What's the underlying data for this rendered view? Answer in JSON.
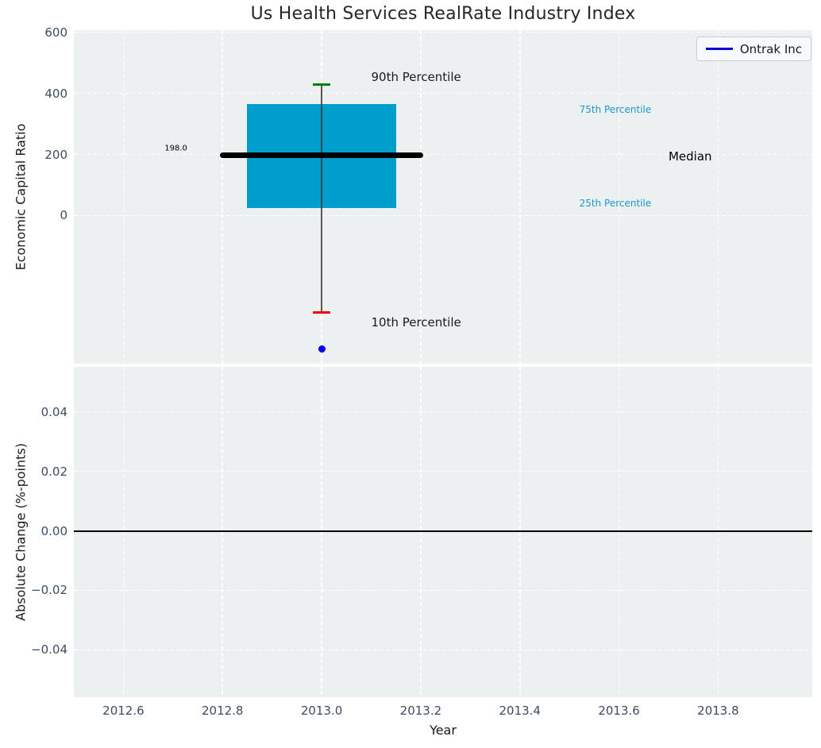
{
  "colors": {
    "figure_bg": "#ffffff",
    "axes_bg": "#ecf0f1",
    "grid": "#ffffff",
    "tick_label": "#3d4c63"
  },
  "chart_data": [
    {
      "subplot": "top",
      "type": "boxplot",
      "title": "Us Health Services RealRate Industry Index",
      "ylabel": "Economic Capital Ratio",
      "xlim": [
        2012.5,
        2013.99
      ],
      "ylim": [
        -485,
        607
      ],
      "grid": true,
      "yticks": [
        {
          "v": 0,
          "label": "0"
        },
        {
          "v": 200,
          "label": "200"
        },
        {
          "v": 400,
          "label": "400"
        },
        {
          "v": 600,
          "label": "600"
        }
      ],
      "box": {
        "x": 2013.0,
        "box_left": 2012.85,
        "box_right": 2013.15,
        "q1": 25,
        "q3": 365,
        "median": 198.0,
        "median_label": "198.0",
        "median_left": 2012.8,
        "median_right": 2013.2,
        "p10": -318,
        "p90": 430,
        "cap_halfwidth": 0.017,
        "colors": {
          "box_fill": "#009ecd",
          "median": "#000000",
          "p90_cap": "#008000",
          "p10_cap": "#ee0000",
          "whisker": "#3c3c3c"
        }
      },
      "point": {
        "series": "Ontrak Inc",
        "x": 2013.0,
        "y": -438,
        "color": "#0000ee"
      },
      "legend": {
        "label": "Ontrak Inc",
        "line_color": "#0000dd",
        "position": "upper right"
      },
      "annotations": [
        {
          "text": "90th Percentile",
          "x": 2013.1,
          "y": 453,
          "color": "#1a1a1a",
          "size": 15
        },
        {
          "text": "75th Percentile",
          "x": 2013.52,
          "y": 346,
          "color": "#1b9ac9",
          "size": 12
        },
        {
          "text": "Median",
          "x": 2013.7,
          "y": 193,
          "color": "#000000",
          "size": 15
        },
        {
          "text": "25th Percentile",
          "x": 2013.52,
          "y": 40,
          "color": "#1b9ac9",
          "size": 12
        },
        {
          "text": "10th Percentile",
          "x": 2013.1,
          "y": -349,
          "color": "#1a1a1a",
          "size": 15
        },
        {
          "text": "198.0",
          "x": 2012.683,
          "y": 219,
          "color": "#000000",
          "size": 10
        }
      ]
    },
    {
      "subplot": "bottom",
      "type": "line",
      "xlabel": "Year",
      "ylabel": "Absolute Change (%-points)",
      "xlim": [
        2012.5,
        2013.99
      ],
      "ylim": [
        -0.0559,
        0.0551
      ],
      "grid": true,
      "hline": {
        "y": 0.0,
        "color": "#000000"
      },
      "yticks": [
        {
          "v": 0.04,
          "label": "0.04"
        },
        {
          "v": 0.02,
          "label": "0.02"
        },
        {
          "v": 0.0,
          "label": "0.00"
        },
        {
          "v": -0.02,
          "label": "−0.02"
        },
        {
          "v": -0.04,
          "label": "−0.04"
        }
      ],
      "xticks": [
        {
          "v": 2012.6,
          "label": "2012.6"
        },
        {
          "v": 2012.8,
          "label": "2012.8"
        },
        {
          "v": 2013.0,
          "label": "2013.0"
        },
        {
          "v": 2013.2,
          "label": "2013.2"
        },
        {
          "v": 2013.4,
          "label": "2013.4"
        },
        {
          "v": 2013.6,
          "label": "2013.6"
        },
        {
          "v": 2013.8,
          "label": "2013.8"
        }
      ],
      "series": []
    }
  ]
}
